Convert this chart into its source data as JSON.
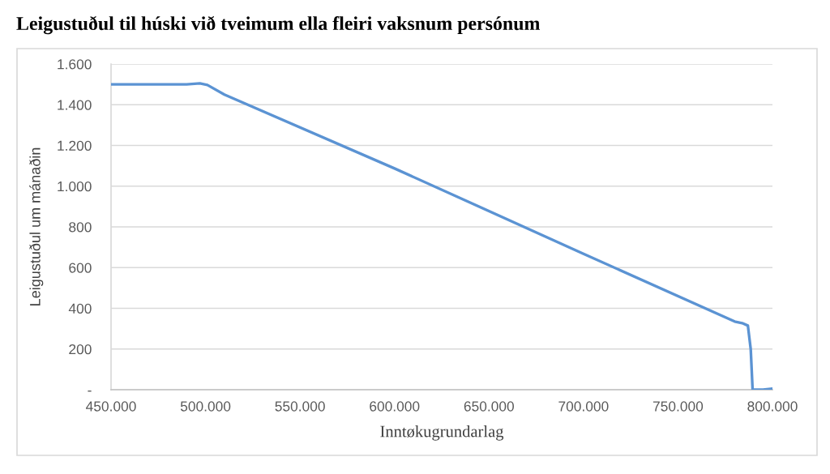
{
  "chart_data": {
    "type": "line",
    "title": "Leigustuðul til húski við tveimum ella fleiri vaksnum persónum",
    "xlabel": "Inntøkugrundarlag",
    "ylabel": "Leigustuðul um mánaðin",
    "x": [
      450000,
      490000,
      497000,
      501000,
      510000,
      600000,
      700000,
      780000,
      784000,
      787000,
      788500,
      789500,
      795000,
      800000
    ],
    "series": [
      {
        "color": "#5b93d3",
        "values": [
          1500,
          1500,
          1505,
          1497,
          1450,
          1087,
          668,
          335,
          327,
          315,
          200,
          0,
          0,
          5
        ]
      }
    ],
    "xlim": [
      450000,
      800000
    ],
    "ylim": [
      0,
      1600
    ],
    "xticks": [
      {
        "value": 450000,
        "label": "450.000"
      },
      {
        "value": 500000,
        "label": "500.000"
      },
      {
        "value": 550000,
        "label": "550.000"
      },
      {
        "value": 600000,
        "label": "600.000"
      },
      {
        "value": 650000,
        "label": "650.000"
      },
      {
        "value": 700000,
        "label": "700.000"
      },
      {
        "value": 750000,
        "label": "750.000"
      },
      {
        "value": 800000,
        "label": "800.000"
      }
    ],
    "yticks": [
      {
        "value": 0,
        "label": "-"
      },
      200,
      400,
      600,
      800,
      {
        "value": 1000,
        "label": "1.000"
      },
      {
        "value": 1200,
        "label": "1.200"
      },
      {
        "value": 1400,
        "label": "1.400"
      },
      {
        "value": 1600,
        "label": "1.600"
      }
    ],
    "grid": "y",
    "marker": "none",
    "line_style": "solid"
  }
}
